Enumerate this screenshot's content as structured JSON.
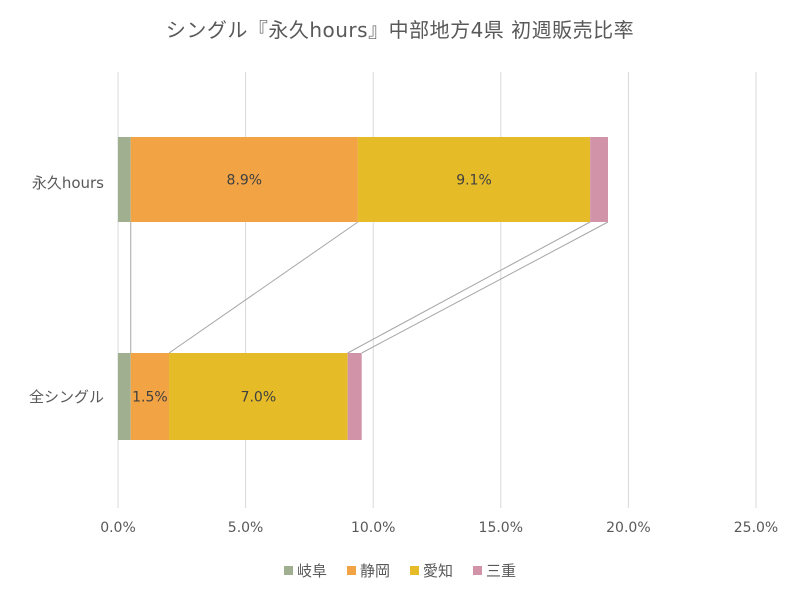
{
  "chart_data": {
    "type": "bar",
    "orientation": "horizontal",
    "stacked": true,
    "title": "シングル『永久hours』中部地方4県 初週販売比率",
    "xlabel": "",
    "ylabel": "",
    "xlim": [
      0,
      25
    ],
    "x_ticks": [
      "0.0%",
      "5.0%",
      "10.0%",
      "15.0%",
      "20.0%",
      "25.0%"
    ],
    "categories": [
      "永久hours",
      "全シングル"
    ],
    "series": [
      {
        "name": "岐阜",
        "color": "#9FAF8F",
        "values": [
          0.5,
          0.5
        ],
        "labels": [
          "",
          ""
        ]
      },
      {
        "name": "静岡",
        "color": "#F2A444",
        "values": [
          8.9,
          1.5
        ],
        "labels": [
          "8.9%",
          "1.5%"
        ]
      },
      {
        "name": "愛知",
        "color": "#E5BC28",
        "values": [
          9.1,
          7.0
        ],
        "labels": [
          "9.1%",
          "7.0%"
        ]
      },
      {
        "name": "三重",
        "color": "#D193A8",
        "values": [
          0.7,
          0.55
        ],
        "labels": [
          "",
          ""
        ]
      }
    ],
    "grid": "vertical",
    "series_lines": true,
    "legend_position": "bottom"
  },
  "legend": {
    "items": [
      {
        "label": "岐阜",
        "color": "#9FAF8F"
      },
      {
        "label": "静岡",
        "color": "#F2A444"
      },
      {
        "label": "愛知",
        "color": "#E5BC28"
      },
      {
        "label": "三重",
        "color": "#D193A8"
      }
    ]
  }
}
